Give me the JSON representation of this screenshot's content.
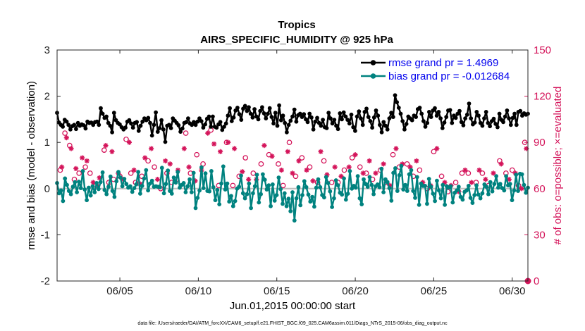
{
  "chart_data": {
    "type": "line",
    "title": "Tropics",
    "subtitle": "AIRS_SPECIFIC_HUMIDITY @ 925 hPa",
    "xlabel": "Jun.01,2015 00:00:00 start",
    "ylabel": "rmse and bias (model - observation)",
    "ylabel_right": "# of obs: o=possible; ×=evaluated",
    "xlim": [
      1,
      31
    ],
    "ylim": [
      -2,
      3
    ],
    "ylim_right": [
      0,
      150
    ],
    "x_ticks": [
      5,
      10,
      15,
      20,
      25,
      30
    ],
    "x_tick_labels": [
      "06/05",
      "06/10",
      "06/15",
      "06/20",
      "06/25",
      "06/30"
    ],
    "y_ticks": [
      -2,
      -1,
      0,
      1,
      2,
      3
    ],
    "y_tick_labels": [
      "-2",
      "-1",
      "0",
      "1",
      "2",
      "3"
    ],
    "y_right_ticks": [
      0,
      30,
      60,
      90,
      120,
      150
    ],
    "y_right_tick_labels": [
      "0",
      "30",
      "60",
      "90",
      "120",
      "150"
    ],
    "legend_position": "top-right",
    "reference_line_y": 0,
    "footnote": "data file: /Users/raeder/DAI/ATM_forcXX/CAM6_setup/f.e21.FHIST_BGC.f09_025.CAM6assim.011/Diags_NTrS_2015-06/obs_diag_output.nc",
    "colors": {
      "rmse": "#000000",
      "bias": "#00827f",
      "obs": "#d4145a",
      "legend_text": "#0000ee",
      "zero_line": "#c0c0c0"
    },
    "series": [
      {
        "name": "rmse",
        "legend": "rmse grand pr = 1.4969",
        "values": [
          1.64,
          1.43,
          1.38,
          1.34,
          1.49,
          1.45,
          1.38,
          1.28,
          1.35,
          1.38,
          1.29,
          1.42,
          1.36,
          1.39,
          1.37,
          1.3,
          1.45,
          1.42,
          1.43,
          1.38,
          1.44,
          1.45,
          1.38,
          1.74,
          1.62,
          1.53,
          1.56,
          1.42,
          1.36,
          1.22,
          1.64,
          1.48,
          1.42,
          1.39,
          1.33,
          1.28,
          1.32,
          1.45,
          1.48,
          1.41,
          1.32,
          1.42,
          1.44,
          1.25,
          1.36,
          1.45,
          1.52,
          1.48,
          1.53,
          1.42,
          1.15,
          1.38,
          1.65,
          1.23,
          1.31,
          1.48,
          1.28,
          1.01,
          1.36,
          1.38,
          1.31,
          1.52,
          1.47,
          1.42,
          1.37,
          1.23,
          1.3,
          1.42,
          1.44,
          1.52,
          1.41,
          1.38,
          1.44,
          1.38,
          1.45,
          1.52,
          1.46,
          1.32,
          1.39,
          1.51,
          1.56,
          1.34,
          1.56,
          1.34,
          1.32,
          1.39,
          1.44,
          1.27,
          1.34,
          1.41,
          1.58,
          1.74,
          1.46,
          1.54,
          1.69,
          1.75,
          1.61,
          1.49,
          1.73,
          1.79,
          1.68,
          1.76,
          1.62,
          1.54,
          1.72,
          1.56,
          1.5,
          1.68,
          1.76,
          1.63,
          1.52,
          1.62,
          1.74,
          1.55,
          1.41,
          1.64,
          1.36,
          1.8,
          1.48,
          1.58,
          1.42,
          1.22,
          1.38,
          1.47,
          1.56,
          1.71,
          1.45,
          1.59,
          1.62,
          1.55,
          1.61,
          1.5,
          1.44,
          1.62,
          1.54,
          1.28,
          1.45,
          1.53,
          1.42,
          1.36,
          1.49,
          1.33,
          1.31,
          1.64,
          1.52,
          1.41,
          1.49,
          1.36,
          1.29,
          1.63,
          1.5,
          1.65,
          1.56,
          1.49,
          1.41,
          1.6,
          1.33,
          1.25,
          1.56,
          1.67,
          1.52,
          1.38,
          1.66,
          1.73,
          1.55,
          1.46,
          1.32,
          1.54,
          1.69,
          1.58,
          1.38,
          1.22,
          1.44,
          1.36,
          1.28,
          1.52,
          1.64,
          1.55,
          2.02,
          1.87,
          1.75,
          1.62,
          1.46,
          1.28,
          1.4,
          1.56,
          1.52,
          1.48,
          1.58,
          1.55,
          1.72,
          1.75,
          1.62,
          1.46,
          1.34,
          1.42,
          1.66,
          1.55,
          1.69,
          1.74,
          1.58,
          1.66,
          1.52,
          1.31,
          1.43,
          1.55,
          1.69,
          1.7,
          1.42,
          1.58,
          1.53,
          1.62,
          1.68,
          1.44,
          1.37,
          1.52,
          1.6,
          1.84,
          1.52,
          1.39,
          1.43,
          1.66,
          1.58,
          1.42,
          1.36,
          1.52,
          1.66,
          1.42,
          1.35,
          1.46,
          1.51,
          1.4,
          1.33,
          1.62,
          1.49,
          1.44,
          1.56,
          1.69,
          1.52,
          1.38,
          1.53,
          1.62,
          1.38,
          1.66,
          1.68,
          1.58,
          1.63,
          1.6,
          1.62
        ]
      },
      {
        "name": "bias",
        "legend": "bias grand pr = -0.012684",
        "values": [
          0.12,
          -0.1,
          -0.04,
          -0.27,
          0.22,
          0.08,
          -0.05,
          -0.12,
          0.04,
          0.14,
          -0.08,
          0.15,
          0.01,
          0.38,
          -0.02,
          -0.25,
          0.02,
          -0.15,
          0.05,
          -0.08,
          0.12,
          -0.01,
          0.14,
          0.35,
          -0.03,
          -0.12,
          0.04,
          0.26,
          -0.05,
          -0.18,
          0.16,
          0.36,
          0.24,
          0.05,
          0.21,
          0.1,
          0.02,
          0.05,
          -0.07,
          0.01,
          0.09,
          0.36,
          -0.11,
          0.06,
          0.22,
          0.4,
          -0.04,
          0.11,
          0.17,
          0.04,
          0.05,
          0.04,
          0.03,
          0.45,
          -0.1,
          0.1,
          0.39,
          -0.05,
          -0.11,
          0.24,
          0.13,
          0.36,
          0.02,
          0.08,
          0.12,
          -0.08,
          0.05,
          0.2,
          -0.08,
          0.34,
          -0.42,
          -0.2,
          -0.04,
          0.46,
          0.01,
          0.33,
          -0.05,
          -0.06,
          0.38,
          0.03,
          -0.25,
          -0.03,
          -0.34,
          0.11,
          0.48,
          -0.02,
          0.11,
          -0.28,
          -0.16,
          -0.38,
          -0.27,
          0.0,
          0.04,
          0.28,
          -0.1,
          -0.21,
          -0.12,
          0.11,
          -0.42,
          -0.1,
          0.05,
          0.3,
          -0.3,
          -0.12,
          0.31,
          0.19,
          -0.02,
          0.07,
          -0.38,
          0.09,
          -0.26,
          -0.14,
          0.24,
          -0.01,
          -0.33,
          -0.1,
          -0.38,
          -0.22,
          -0.49,
          -0.08,
          -0.69,
          -0.21,
          0.03,
          -0.36,
          -0.14,
          0.16,
          0.03,
          -0.13,
          -0.28,
          -0.18,
          -0.39,
          0.02,
          0.2,
          0.03,
          -0.14,
          -0.19,
          0.25,
          0.12,
          -0.06,
          -0.4,
          -0.21,
          0.18,
          0.07,
          -0.09,
          -0.13,
          0.22,
          -0.24,
          -0.11,
          0.38,
          0.0,
          0.06,
          0.02,
          0.27,
          -0.21,
          -0.34,
          0.2,
          0.1,
          0.04,
          0.25,
          0.08,
          -0.12,
          0.05,
          0.09,
          0.03,
          0.43,
          -0.08,
          0.2,
          0.14,
          0.01,
          -0.26,
          0.34,
          0.44,
          -0.05,
          0.29,
          0.49,
          -0.02,
          0.08,
          -0.05,
          0.31,
          0.4,
          -0.05,
          -0.2,
          0.25,
          -0.35,
          0.11,
          0.06,
          0.06,
          -0.33,
          0.21,
          0.04,
          -0.11,
          -0.27,
          0.17,
          -0.04,
          -0.21,
          0.08,
          -0.35,
          0.05,
          0.02,
          0.05,
          -0.3,
          -0.09,
          -0.04,
          0.04,
          -0.18,
          -0.24,
          -0.07,
          -0.04,
          0.06,
          -0.2,
          -0.31,
          -0.14,
          0.07,
          -0.13,
          -0.21,
          -0.1,
          0.09,
          0.04,
          -0.12,
          0.14,
          -0.06,
          0.1,
          0.27,
          0.02,
          0.1,
          0.01,
          -0.04,
          0.27,
          0.07,
          0.1,
          -0.25,
          -0.04,
          0.3,
          -0.05,
          0.32,
          0.31,
          0.08,
          -0.09,
          0.02
        ]
      }
    ],
    "obs_possible": [
      {
        "x": 1.2,
        "n": 72
      },
      {
        "x": 1.5,
        "n": 96
      },
      {
        "x": 1.8,
        "n": 88
      },
      {
        "x": 2.1,
        "n": 66
      },
      {
        "x": 2.4,
        "n": 70
      },
      {
        "x": 2.8,
        "n": 74
      },
      {
        "x": 3.1,
        "n": 70
      },
      {
        "x": 3.5,
        "n": 62
      },
      {
        "x": 4.0,
        "n": 85
      },
      {
        "x": 4.3,
        "n": 64
      },
      {
        "x": 4.6,
        "n": 66
      },
      {
        "x": 5.0,
        "n": 68
      },
      {
        "x": 5.4,
        "n": 92
      },
      {
        "x": 5.7,
        "n": 70
      },
      {
        "x": 6.0,
        "n": 64
      },
      {
        "x": 6.4,
        "n": 68
      },
      {
        "x": 6.8,
        "n": 78
      },
      {
        "x": 7.2,
        "n": 74
      },
      {
        "x": 7.6,
        "n": 60
      },
      {
        "x": 8.0,
        "n": 70
      },
      {
        "x": 8.3,
        "n": 64
      },
      {
        "x": 8.6,
        "n": 66
      },
      {
        "x": 9.2,
        "n": 96
      },
      {
        "x": 9.5,
        "n": 70
      },
      {
        "x": 9.9,
        "n": 82
      },
      {
        "x": 10.3,
        "n": 76
      },
      {
        "x": 10.8,
        "n": 98
      },
      {
        "x": 11.3,
        "n": 62
      },
      {
        "x": 11.8,
        "n": 90
      },
      {
        "x": 12.2,
        "n": 62
      },
      {
        "x": 12.6,
        "n": 68
      },
      {
        "x": 13.0,
        "n": 80
      },
      {
        "x": 13.5,
        "n": 70
      },
      {
        "x": 14.0,
        "n": 76
      },
      {
        "x": 14.5,
        "n": 82
      },
      {
        "x": 15.1,
        "n": 76
      },
      {
        "x": 15.4,
        "n": 62
      },
      {
        "x": 15.8,
        "n": 90
      },
      {
        "x": 16.2,
        "n": 68
      },
      {
        "x": 16.6,
        "n": 80
      },
      {
        "x": 17.1,
        "n": 74
      },
      {
        "x": 17.6,
        "n": 64
      },
      {
        "x": 18.0,
        "n": 78
      },
      {
        "x": 18.5,
        "n": 64
      },
      {
        "x": 18.9,
        "n": 64
      },
      {
        "x": 19.3,
        "n": 72
      },
      {
        "x": 19.8,
        "n": 80
      },
      {
        "x": 20.3,
        "n": 74
      },
      {
        "x": 20.7,
        "n": 70
      },
      {
        "x": 21.1,
        "n": 66
      },
      {
        "x": 21.6,
        "n": 72
      },
      {
        "x": 22.0,
        "n": 64
      },
      {
        "x": 22.4,
        "n": 82
      },
      {
        "x": 22.8,
        "n": 74
      },
      {
        "x": 23.3,
        "n": 76
      },
      {
        "x": 23.7,
        "n": 68
      },
      {
        "x": 24.1,
        "n": 72
      },
      {
        "x": 24.6,
        "n": 60
      },
      {
        "x": 25.0,
        "n": 84
      },
      {
        "x": 25.5,
        "n": 68
      },
      {
        "x": 25.9,
        "n": 58
      },
      {
        "x": 26.4,
        "n": 64
      },
      {
        "x": 26.8,
        "n": 70
      },
      {
        "x": 27.2,
        "n": 70
      },
      {
        "x": 27.7,
        "n": 64
      },
      {
        "x": 28.1,
        "n": 70
      },
      {
        "x": 28.5,
        "n": 62
      },
      {
        "x": 29.2,
        "n": 78
      },
      {
        "x": 29.6,
        "n": 70
      },
      {
        "x": 30.0,
        "n": 72
      },
      {
        "x": 30.4,
        "n": 62
      },
      {
        "x": 30.8,
        "n": 90
      }
    ],
    "obs_evaluated": [
      {
        "x": 1.3,
        "n": 74
      },
      {
        "x": 1.6,
        "n": 93
      },
      {
        "x": 1.9,
        "n": 86
      },
      {
        "x": 2.2,
        "n": 73
      },
      {
        "x": 2.6,
        "n": 80
      },
      {
        "x": 2.9,
        "n": 78
      },
      {
        "x": 3.3,
        "n": 64
      },
      {
        "x": 3.7,
        "n": 67
      },
      {
        "x": 4.1,
        "n": 88
      },
      {
        "x": 4.5,
        "n": 84
      },
      {
        "x": 4.9,
        "n": 70
      },
      {
        "x": 5.2,
        "n": 66
      },
      {
        "x": 5.6,
        "n": 90
      },
      {
        "x": 5.9,
        "n": 72
      },
      {
        "x": 6.3,
        "n": 63
      },
      {
        "x": 6.6,
        "n": 80
      },
      {
        "x": 7.0,
        "n": 86
      },
      {
        "x": 7.4,
        "n": 66
      },
      {
        "x": 7.9,
        "n": 78
      },
      {
        "x": 8.2,
        "n": 76
      },
      {
        "x": 8.7,
        "n": 72
      },
      {
        "x": 9.1,
        "n": 86
      },
      {
        "x": 9.4,
        "n": 74
      },
      {
        "x": 9.8,
        "n": 65
      },
      {
        "x": 10.2,
        "n": 72
      },
      {
        "x": 10.6,
        "n": 96
      },
      {
        "x": 11.0,
        "n": 89
      },
      {
        "x": 11.4,
        "n": 84
      },
      {
        "x": 11.9,
        "n": 90
      },
      {
        "x": 12.3,
        "n": 86
      },
      {
        "x": 12.8,
        "n": 71
      },
      {
        "x": 13.2,
        "n": 66
      },
      {
        "x": 13.7,
        "n": 66
      },
      {
        "x": 14.2,
        "n": 88
      },
      {
        "x": 14.7,
        "n": 81
      },
      {
        "x": 15.3,
        "n": 72
      },
      {
        "x": 15.7,
        "n": 84
      },
      {
        "x": 16.0,
        "n": 70
      },
      {
        "x": 16.4,
        "n": 78
      },
      {
        "x": 16.9,
        "n": 72
      },
      {
        "x": 17.3,
        "n": 65
      },
      {
        "x": 17.8,
        "n": 84
      },
      {
        "x": 18.2,
        "n": 69
      },
      {
        "x": 18.7,
        "n": 74
      },
      {
        "x": 19.1,
        "n": 68
      },
      {
        "x": 19.6,
        "n": 74
      },
      {
        "x": 20.0,
        "n": 82
      },
      {
        "x": 20.5,
        "n": 70
      },
      {
        "x": 20.9,
        "n": 78
      },
      {
        "x": 21.3,
        "n": 70
      },
      {
        "x": 21.8,
        "n": 76
      },
      {
        "x": 22.2,
        "n": 62
      },
      {
        "x": 22.6,
        "n": 86
      },
      {
        "x": 23.0,
        "n": 76
      },
      {
        "x": 23.5,
        "n": 74
      },
      {
        "x": 23.9,
        "n": 78
      },
      {
        "x": 24.3,
        "n": 64
      },
      {
        "x": 24.8,
        "n": 62
      },
      {
        "x": 25.2,
        "n": 86
      },
      {
        "x": 25.7,
        "n": 64
      },
      {
        "x": 26.1,
        "n": 62
      },
      {
        "x": 26.6,
        "n": 58
      },
      {
        "x": 27.0,
        "n": 72
      },
      {
        "x": 27.4,
        "n": 64
      },
      {
        "x": 27.9,
        "n": 72
      },
      {
        "x": 28.3,
        "n": 66
      },
      {
        "x": 28.8,
        "n": 70
      },
      {
        "x": 29.3,
        "n": 76
      },
      {
        "x": 29.8,
        "n": 66
      },
      {
        "x": 30.2,
        "n": 70
      },
      {
        "x": 30.6,
        "n": 60
      },
      {
        "x": 30.9,
        "n": 86
      }
    ],
    "obs_endpoint": {
      "x": 31,
      "n": 0
    }
  }
}
